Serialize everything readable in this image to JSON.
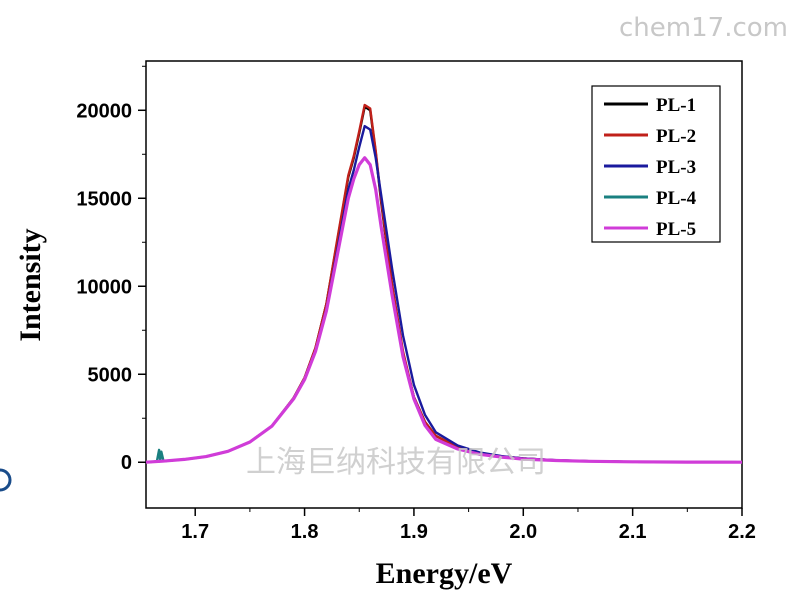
{
  "watermarks": {
    "top_right": "chem17.com",
    "center": "上海巨纳科技有限公司"
  },
  "chart_data": {
    "type": "line",
    "xlabel": "Energy/eV",
    "ylabel": "Intensity",
    "xlim": [
      1.655,
      2.2
    ],
    "ylim": [
      -2600,
      22800
    ],
    "xticks": [
      1.7,
      1.8,
      1.9,
      2.0,
      2.1,
      2.2
    ],
    "xtick_labels": [
      "1.7",
      "1.8",
      "1.9",
      "2.0",
      "2.1",
      "2.2"
    ],
    "yticks": [
      0,
      5000,
      10000,
      15000,
      20000
    ],
    "ytick_labels": [
      "0",
      "5000",
      "10000",
      "15000",
      "20000"
    ],
    "grid": false,
    "legend_position": "top-right",
    "series": [
      {
        "name": "PL-1",
        "color": "#000000",
        "x": [
          1.655,
          1.67,
          1.69,
          1.71,
          1.73,
          1.75,
          1.77,
          1.79,
          1.8,
          1.81,
          1.82,
          1.83,
          1.84,
          1.845,
          1.85,
          1.855,
          1.86,
          1.865,
          1.87,
          1.88,
          1.89,
          1.9,
          1.91,
          1.92,
          1.94,
          1.96,
          1.98,
          2.0,
          2.03,
          2.06,
          2.1,
          2.15,
          2.2
        ],
        "y": [
          0,
          60,
          160,
          320,
          620,
          1150,
          2050,
          3650,
          4800,
          6500,
          9000,
          12600,
          16200,
          17300,
          18700,
          20200,
          20000,
          17600,
          14800,
          10000,
          6200,
          3700,
          2300,
          1500,
          850,
          520,
          330,
          210,
          110,
          60,
          25,
          10,
          5
        ]
      },
      {
        "name": "PL-2",
        "color": "#c0201a",
        "x": [
          1.655,
          1.67,
          1.69,
          1.71,
          1.73,
          1.75,
          1.77,
          1.79,
          1.8,
          1.81,
          1.82,
          1.83,
          1.84,
          1.845,
          1.85,
          1.855,
          1.86,
          1.865,
          1.87,
          1.88,
          1.89,
          1.9,
          1.91,
          1.92,
          1.94,
          1.96,
          1.98,
          2.0,
          2.03,
          2.06,
          2.1,
          2.15,
          2.2
        ],
        "y": [
          0,
          60,
          160,
          320,
          620,
          1150,
          2050,
          3650,
          4800,
          6500,
          9000,
          12700,
          16300,
          17400,
          18800,
          20300,
          20100,
          17700,
          14900,
          10100,
          6300,
          3700,
          2300,
          1500,
          850,
          520,
          330,
          210,
          110,
          60,
          25,
          10,
          5
        ]
      },
      {
        "name": "PL-3",
        "color": "#1a1a9e",
        "x": [
          1.655,
          1.67,
          1.69,
          1.71,
          1.73,
          1.75,
          1.77,
          1.79,
          1.8,
          1.81,
          1.82,
          1.83,
          1.84,
          1.845,
          1.85,
          1.855,
          1.86,
          1.865,
          1.87,
          1.88,
          1.89,
          1.9,
          1.91,
          1.92,
          1.94,
          1.96,
          1.98,
          2.0,
          2.03,
          2.06,
          2.1,
          2.15,
          2.2
        ],
        "y": [
          0,
          60,
          160,
          320,
          620,
          1150,
          2050,
          3600,
          4700,
          6300,
          8700,
          12100,
          15500,
          16600,
          17900,
          19100,
          18900,
          17300,
          15200,
          11000,
          7200,
          4400,
          2700,
          1700,
          950,
          560,
          350,
          220,
          115,
          60,
          25,
          10,
          5
        ]
      },
      {
        "name": "PL-4",
        "color": "#1a8080",
        "x": [
          1.655,
          1.665,
          1.667,
          1.668,
          1.669,
          1.671,
          1.69,
          1.71,
          1.73,
          1.75,
          1.77,
          1.79,
          1.8,
          1.81,
          1.82,
          1.83,
          1.84,
          1.845,
          1.85,
          1.855,
          1.86,
          1.865,
          1.87,
          1.88,
          1.89,
          1.9,
          1.91,
          1.92,
          1.94,
          1.96,
          1.98,
          2.0,
          2.03,
          2.06,
          2.1,
          2.15,
          2.2
        ],
        "y": [
          0,
          50,
          700,
          100,
          600,
          70,
          160,
          320,
          620,
          1150,
          2050,
          3600,
          4700,
          6300,
          8600,
          11800,
          15000,
          16100,
          16900,
          17300,
          16900,
          15500,
          13400,
          9500,
          6000,
          3600,
          2100,
          1300,
          750,
          450,
          290,
          180,
          100,
          55,
          25,
          10,
          5
        ]
      },
      {
        "name": "PL-5",
        "color": "#d03cd8",
        "x": [
          1.655,
          1.67,
          1.69,
          1.71,
          1.73,
          1.75,
          1.77,
          1.79,
          1.8,
          1.81,
          1.82,
          1.83,
          1.84,
          1.845,
          1.85,
          1.855,
          1.86,
          1.865,
          1.87,
          1.88,
          1.89,
          1.9,
          1.91,
          1.92,
          1.94,
          1.96,
          1.98,
          2.0,
          2.03,
          2.06,
          2.1,
          2.15,
          2.2
        ],
        "y": [
          0,
          60,
          160,
          320,
          620,
          1150,
          2050,
          3600,
          4700,
          6300,
          8600,
          11800,
          15000,
          16100,
          16900,
          17300,
          16900,
          15500,
          13400,
          9500,
          6000,
          3600,
          2100,
          1300,
          750,
          450,
          290,
          180,
          100,
          55,
          25,
          10,
          5
        ]
      }
    ]
  }
}
